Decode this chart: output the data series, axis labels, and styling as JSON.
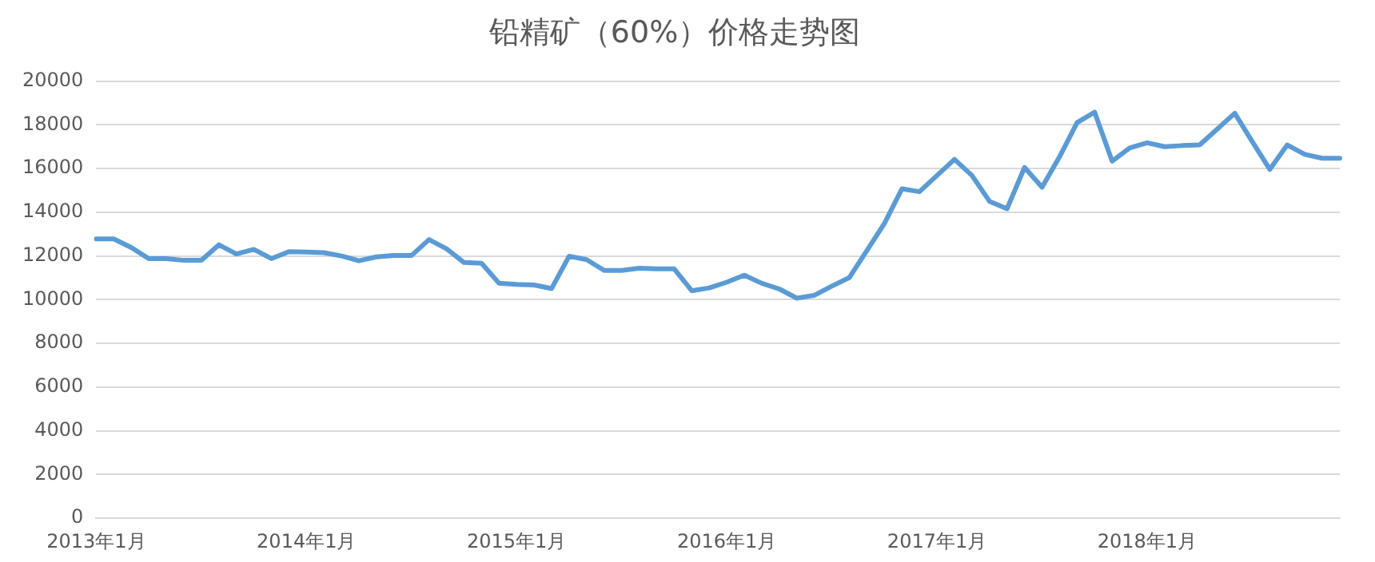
{
  "chart_data": {
    "type": "line",
    "title": "铅精矿（60%）价格走势图",
    "categories": [
      "2013年1月",
      null,
      null,
      null,
      null,
      null,
      null,
      null,
      null,
      null,
      null,
      null,
      "2014年1月",
      null,
      null,
      null,
      null,
      null,
      null,
      null,
      null,
      null,
      null,
      null,
      "2015年1月",
      null,
      null,
      null,
      null,
      null,
      null,
      null,
      null,
      null,
      null,
      null,
      "2016年1月",
      null,
      null,
      null,
      null,
      null,
      null,
      null,
      null,
      null,
      null,
      null,
      "2017年1月",
      null,
      null,
      null,
      null,
      null,
      null,
      null,
      null,
      null,
      null,
      null,
      "2018年1月",
      null,
      null,
      null,
      null,
      null,
      null,
      null,
      null,
      null,
      null,
      null
    ],
    "series": [
      {
        "color": "#5b9bd5",
        "values": [
          12780,
          12780,
          12390,
          11880,
          11880,
          11800,
          11800,
          12510,
          12090,
          12300,
          11880,
          12200,
          12180,
          12150,
          12000,
          11780,
          11960,
          12020,
          12020,
          12750,
          12330,
          11700,
          11670,
          10750,
          10700,
          10670,
          10510,
          11990,
          11830,
          11340,
          11340,
          11440,
          11410,
          11410,
          10410,
          10540,
          10800,
          11120,
          10750,
          10490,
          10070,
          10200,
          10620,
          11010,
          12250,
          13490,
          15070,
          14940,
          15680,
          16420,
          15680,
          14500,
          14160,
          16050,
          15150,
          16540,
          18100,
          18580,
          16340,
          16940,
          17180,
          17000,
          17050,
          17080,
          17800,
          18530,
          17230,
          15960,
          17080,
          16650,
          16470,
          16470
        ]
      }
    ],
    "ylim": [
      0,
      20000
    ],
    "yticks": [
      0,
      2000,
      4000,
      6000,
      8000,
      10000,
      12000,
      14000,
      16000,
      18000,
      20000
    ],
    "grid": "y",
    "legend": false,
    "marker": "none",
    "line_style": "solid"
  }
}
